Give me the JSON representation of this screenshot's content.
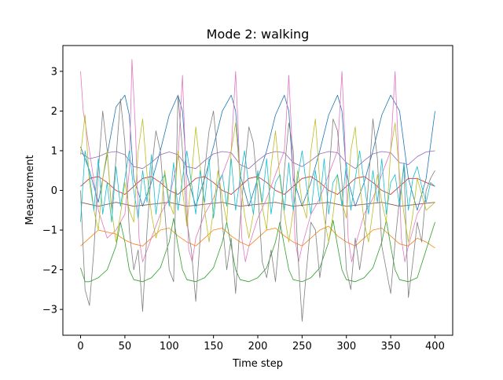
{
  "chart_data": {
    "type": "line",
    "title": "Mode 2: walking",
    "xlabel": "Time step",
    "ylabel": "Measurement",
    "xlim": [
      -20,
      420
    ],
    "ylim": [
      -3.65,
      3.65
    ],
    "xticks": [
      0,
      50,
      100,
      150,
      200,
      250,
      300,
      350,
      400
    ],
    "yticks": [
      -3,
      -2,
      -1,
      0,
      1,
      2,
      3
    ],
    "xtick_labels": [
      "0",
      "50",
      "100",
      "150",
      "200",
      "250",
      "300",
      "350",
      "400"
    ],
    "ytick_labels": [
      "−3",
      "−2",
      "−1",
      "0",
      "1",
      "2",
      "3"
    ],
    "grid": false,
    "legend": "none",
    "series": [
      {
        "color": "#1f77b4",
        "x": [
          0,
          10,
          20,
          30,
          40,
          50,
          55,
          60,
          70,
          80,
          90,
          100,
          110,
          115,
          120,
          130,
          140,
          150,
          160,
          170,
          175,
          180,
          190,
          200,
          210,
          220,
          230,
          235,
          240,
          250,
          260,
          270,
          280,
          290,
          295,
          300,
          310,
          320,
          330,
          340,
          350,
          360,
          370,
          380,
          390,
          400
        ],
        "y": [
          1.1,
          0.5,
          -0.3,
          0.9,
          2.1,
          2.4,
          1.9,
          0.3,
          -0.4,
          0.2,
          1.0,
          1.9,
          2.4,
          2.0,
          0.4,
          -0.4,
          0.3,
          1.1,
          2.0,
          2.4,
          2.0,
          0.4,
          -0.4,
          0.3,
          1.0,
          1.9,
          2.4,
          2.0,
          0.3,
          -0.4,
          0.2,
          1.0,
          1.9,
          2.4,
          2.0,
          0.4,
          -0.4,
          0.2,
          1.0,
          1.9,
          2.4,
          2.0,
          0.3,
          -0.5,
          0.3,
          2.0
        ]
      },
      {
        "color": "#ff7f0e",
        "x": [
          0,
          10,
          20,
          30,
          40,
          50,
          60,
          70,
          80,
          90,
          100,
          110,
          120,
          130,
          140,
          150,
          160,
          170,
          180,
          190,
          200,
          210,
          220,
          230,
          240,
          250,
          260,
          270,
          280,
          290,
          300,
          310,
          320,
          330,
          340,
          350,
          360,
          370,
          380,
          390,
          400
        ],
        "y": [
          -1.4,
          -1.2,
          -1.0,
          -1.05,
          -1.1,
          -1.25,
          -1.35,
          -1.4,
          -1.2,
          -1.0,
          -0.95,
          -1.15,
          -1.3,
          -1.4,
          -1.2,
          -1.0,
          -0.95,
          -1.15,
          -1.3,
          -1.4,
          -1.2,
          -1.0,
          -0.95,
          -1.15,
          -1.3,
          -1.4,
          -1.2,
          -1.0,
          -0.9,
          -1.15,
          -1.3,
          -1.4,
          -1.2,
          -1.0,
          -0.95,
          -1.15,
          -1.35,
          -1.4,
          -1.2,
          -1.3,
          -1.45
        ]
      },
      {
        "color": "#2ca02c",
        "x": [
          0,
          5,
          10,
          20,
          30,
          40,
          45,
          50,
          55,
          60,
          70,
          80,
          90,
          100,
          105,
          110,
          115,
          120,
          130,
          140,
          150,
          160,
          165,
          170,
          175,
          180,
          190,
          200,
          210,
          220,
          225,
          230,
          235,
          240,
          250,
          260,
          270,
          280,
          285,
          290,
          295,
          300,
          310,
          320,
          330,
          340,
          345,
          350,
          355,
          360,
          370,
          380,
          390,
          400
        ],
        "y": [
          -1.95,
          -2.3,
          -2.3,
          -2.2,
          -2.0,
          -1.4,
          -0.8,
          -1.3,
          -2.0,
          -2.25,
          -2.3,
          -2.2,
          -1.95,
          -1.3,
          -0.7,
          -1.4,
          -2.0,
          -2.25,
          -2.3,
          -2.2,
          -1.95,
          -1.3,
          -0.8,
          -1.4,
          -2.0,
          -2.25,
          -2.3,
          -2.2,
          -1.95,
          -1.3,
          -0.8,
          -1.4,
          -2.0,
          -2.25,
          -2.3,
          -2.2,
          -1.95,
          -1.3,
          -0.75,
          -1.4,
          -2.0,
          -2.25,
          -2.3,
          -2.2,
          -1.95,
          -1.3,
          -0.75,
          -1.4,
          -2.0,
          -2.25,
          -2.3,
          -2.2,
          -1.5,
          -0.8
        ]
      },
      {
        "color": "#d62728",
        "x": [
          0,
          10,
          20,
          30,
          40,
          50,
          60,
          70,
          80,
          90,
          100,
          110,
          120,
          130,
          140,
          150,
          160,
          170,
          180,
          190,
          200,
          210,
          220,
          230,
          240,
          250,
          260,
          270,
          280,
          290,
          300,
          310,
          320,
          330,
          340,
          350,
          360,
          370,
          380,
          390,
          400
        ],
        "y": [
          0.1,
          0.3,
          0.35,
          0.2,
          0.0,
          -0.1,
          0.1,
          0.3,
          0.35,
          0.2,
          0.0,
          -0.1,
          0.1,
          0.3,
          0.35,
          0.2,
          0.0,
          -0.1,
          0.1,
          0.3,
          0.35,
          0.2,
          0.0,
          -0.1,
          0.1,
          0.3,
          0.35,
          0.2,
          0.0,
          -0.1,
          0.1,
          0.3,
          0.35,
          0.2,
          0.0,
          -0.1,
          0.1,
          0.3,
          0.3,
          0.2,
          0.1
        ]
      },
      {
        "color": "#9467bd",
        "x": [
          0,
          10,
          20,
          30,
          40,
          50,
          60,
          70,
          80,
          90,
          100,
          110,
          120,
          130,
          140,
          150,
          160,
          170,
          180,
          190,
          200,
          210,
          220,
          230,
          240,
          250,
          260,
          270,
          280,
          290,
          300,
          310,
          320,
          330,
          340,
          350,
          360,
          370,
          380,
          390,
          400
        ],
        "y": [
          0.95,
          0.8,
          0.85,
          0.95,
          0.98,
          0.9,
          0.6,
          0.55,
          0.7,
          0.9,
          0.97,
          0.9,
          0.6,
          0.55,
          0.75,
          0.92,
          0.98,
          0.95,
          0.65,
          0.55,
          0.75,
          0.92,
          0.98,
          0.95,
          0.7,
          0.6,
          0.75,
          0.92,
          0.98,
          0.95,
          0.7,
          0.55,
          0.75,
          0.92,
          0.98,
          0.95,
          0.7,
          0.65,
          0.85,
          0.97,
          1.0
        ]
      },
      {
        "color": "#8c564b",
        "x": [
          0,
          20,
          40,
          60,
          80,
          100,
          120,
          140,
          160,
          180,
          200,
          220,
          240,
          260,
          280,
          300,
          320,
          340,
          360,
          380,
          400
        ],
        "y": [
          -0.3,
          -0.4,
          -0.3,
          -0.4,
          -0.35,
          -0.3,
          -0.4,
          -0.35,
          -0.3,
          -0.4,
          -0.35,
          -0.3,
          -0.4,
          -0.35,
          -0.3,
          -0.4,
          -0.35,
          -0.3,
          -0.4,
          -0.35,
          -0.3
        ]
      },
      {
        "color": "#e377c2",
        "x": [
          0,
          3,
          6,
          10,
          20,
          30,
          40,
          50,
          55,
          58,
          62,
          66,
          70,
          80,
          90,
          100,
          110,
          115,
          118,
          122,
          126,
          130,
          140,
          150,
          160,
          170,
          175,
          178,
          182,
          186,
          190,
          200,
          210,
          220,
          230,
          235,
          238,
          242,
          246,
          250,
          260,
          270,
          280,
          290,
          295,
          298,
          302,
          306,
          310,
          320,
          330,
          340,
          350,
          355,
          358,
          362,
          366,
          370,
          380,
          390
        ],
        "y": [
          3.0,
          2.0,
          1.6,
          1.0,
          -0.5,
          -1.2,
          -1.0,
          -0.6,
          0.5,
          3.3,
          1.5,
          -1.2,
          -1.8,
          -1.2,
          -0.6,
          -0.2,
          0.8,
          2.9,
          1.0,
          -1.5,
          -1.8,
          -1.2,
          -0.6,
          -0.2,
          0.4,
          1.0,
          3.0,
          1.5,
          -1.2,
          -1.8,
          -1.4,
          -0.7,
          -0.2,
          0.4,
          1.0,
          2.9,
          1.5,
          -1.2,
          -1.8,
          -1.4,
          -0.6,
          -0.2,
          0.4,
          1.0,
          3.0,
          1.4,
          -1.2,
          -1.8,
          -1.4,
          -0.6,
          -0.2,
          0.4,
          1.0,
          3.0,
          1.4,
          -1.2,
          -1.8,
          -1.4,
          -0.6,
          -0.2
        ]
      },
      {
        "color": "#7f7f7f",
        "x": [
          0,
          5,
          10,
          15,
          20,
          25,
          30,
          35,
          40,
          45,
          50,
          55,
          60,
          65,
          70,
          75,
          80,
          85,
          90,
          95,
          100,
          105,
          110,
          115,
          120,
          125,
          130,
          135,
          140,
          145,
          150,
          155,
          160,
          165,
          170,
          175,
          180,
          185,
          190,
          195,
          200,
          205,
          210,
          215,
          220,
          225,
          230,
          235,
          240,
          245,
          250,
          255,
          260,
          265,
          270,
          275,
          280,
          285,
          290,
          295,
          300,
          305,
          310,
          315,
          320,
          325,
          330,
          335,
          340,
          345,
          350,
          355,
          360,
          365,
          370,
          375,
          380,
          385,
          390,
          395,
          400
        ],
        "y": [
          0.0,
          -2.5,
          -2.9,
          -1.5,
          0.5,
          2.0,
          1.0,
          -0.5,
          0.8,
          2.3,
          1.2,
          -1.0,
          -2.0,
          -1.5,
          -3.05,
          -1.0,
          0.5,
          1.5,
          1.0,
          -0.5,
          -2.0,
          -2.3,
          2.4,
          1.0,
          -0.8,
          -1.5,
          -2.8,
          -1.2,
          0.5,
          1.5,
          2.0,
          0.8,
          -0.8,
          -2.0,
          -1.2,
          -2.6,
          -0.8,
          0.5,
          1.6,
          1.2,
          0.0,
          -1.8,
          -2.2,
          -1.5,
          -2.3,
          -1.0,
          0.5,
          1.7,
          1.0,
          -1.5,
          -3.3,
          -2.0,
          -0.8,
          -1.0,
          -2.2,
          -1.4,
          0.3,
          1.8,
          1.5,
          0.2,
          -2.0,
          -2.5,
          -1.2,
          -2.0,
          -1.2,
          0.2,
          1.8,
          0.8,
          -1.4,
          -2.0,
          -2.6,
          -1.3,
          -0.2,
          0.6,
          -2.7,
          -1.8,
          -0.8,
          -1.3,
          0.0,
          0.3,
          0.5
        ]
      },
      {
        "color": "#bcbd22",
        "x": [
          0,
          5,
          10,
          15,
          20,
          25,
          30,
          35,
          40,
          45,
          50,
          55,
          60,
          65,
          70,
          75,
          80,
          85,
          90,
          95,
          100,
          105,
          110,
          115,
          120,
          125,
          130,
          135,
          140,
          145,
          150,
          155,
          160,
          165,
          170,
          175,
          180,
          185,
          190,
          195,
          200,
          205,
          210,
          215,
          220,
          225,
          230,
          235,
          240,
          245,
          250,
          255,
          260,
          265,
          270,
          275,
          280,
          285,
          290,
          295,
          300,
          305,
          310,
          315,
          320,
          325,
          330,
          335,
          340,
          345,
          350,
          355,
          360,
          365,
          370,
          375,
          380,
          390,
          400
        ],
        "y": [
          0.9,
          1.9,
          0.2,
          -0.5,
          -1.0,
          0.3,
          1.0,
          -0.5,
          -1.3,
          -0.6,
          0.2,
          -0.5,
          -0.8,
          1.0,
          1.8,
          0.4,
          -0.6,
          -1.2,
          -0.8,
          0.5,
          -0.3,
          -0.6,
          1.0,
          0.0,
          -0.9,
          0.3,
          1.6,
          0.6,
          -0.5,
          -1.3,
          -0.5,
          0.5,
          -0.2,
          -0.8,
          1.0,
          1.7,
          0.3,
          -0.6,
          -1.2,
          -0.6,
          0.4,
          -0.4,
          -1.0,
          0.6,
          1.5,
          0.3,
          -0.6,
          -1.3,
          -0.5,
          0.5,
          -0.3,
          -0.7,
          1.0,
          1.8,
          0.2,
          -0.7,
          -1.3,
          -0.6,
          0.4,
          -0.3,
          -0.7,
          1.0,
          1.6,
          0.2,
          -0.8,
          -1.3,
          -0.5,
          0.4,
          -0.3,
          -0.8,
          1.0,
          1.7,
          0.4,
          -0.6,
          -1.3,
          -0.6,
          0.3,
          -0.5,
          -0.3
        ]
      },
      {
        "color": "#17becf",
        "x": [
          0,
          5,
          10,
          15,
          20,
          25,
          30,
          35,
          40,
          45,
          50,
          55,
          60,
          65,
          70,
          75,
          80,
          85,
          90,
          95,
          100,
          105,
          110,
          115,
          120,
          125,
          130,
          135,
          140,
          145,
          150,
          155,
          160,
          165,
          170,
          175,
          180,
          185,
          190,
          195,
          200,
          205,
          210,
          215,
          220,
          225,
          230,
          235,
          240,
          245,
          250,
          255,
          260,
          265,
          270,
          275,
          280,
          285,
          290,
          295,
          300,
          305,
          310,
          315,
          320,
          325,
          330,
          335,
          340,
          345,
          350,
          355,
          360,
          365,
          370,
          375,
          380,
          385,
          390,
          395,
          400
        ],
        "y": [
          -0.8,
          1.0,
          0.4,
          -0.5,
          0.8,
          -0.6,
          0.2,
          -0.8,
          0.6,
          -0.4,
          0.3,
          1.0,
          0.0,
          -0.7,
          0.5,
          -0.3,
          0.9,
          -0.6,
          0.2,
          0.4,
          -0.4,
          0.7,
          -0.5,
          0.3,
          1.0,
          0.2,
          -0.6,
          0.5,
          -0.3,
          0.8,
          -0.7,
          0.2,
          0.4,
          -0.4,
          0.8,
          -0.5,
          0.3,
          1.0,
          0.1,
          -0.6,
          0.5,
          -0.3,
          0.8,
          -0.6,
          0.2,
          0.4,
          -0.5,
          0.7,
          -0.5,
          0.3,
          1.0,
          0.1,
          -0.6,
          0.5,
          -0.3,
          0.8,
          -0.6,
          0.2,
          0.4,
          -0.4,
          0.7,
          -0.5,
          0.3,
          1.0,
          0.2,
          -0.6,
          0.5,
          -0.3,
          0.8,
          -0.6,
          0.2,
          0.4,
          -0.4,
          0.7,
          -0.5,
          0.3,
          0.6,
          0.1,
          -0.3,
          0.2,
          0.1
        ]
      }
    ]
  }
}
